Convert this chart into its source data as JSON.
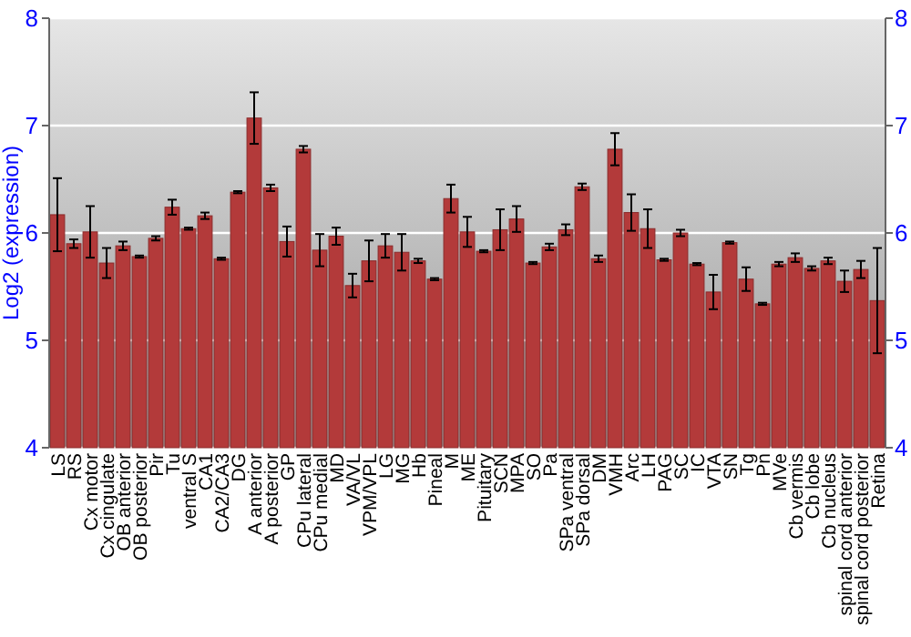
{
  "chart_data": {
    "type": "bar",
    "ylabel": "Log2 (expression)",
    "categories": [
      "LS",
      "RS",
      "Cx motor",
      "Cx cingulate",
      "OB anterior",
      "OB posterior",
      "Pir",
      "Tu",
      "ventral S",
      "CA1",
      "CA2/CA3",
      "DG",
      "A anterior",
      "A posterior",
      "GP",
      "CPu lateral",
      "CPu medial",
      "MD",
      "VA/VL",
      "VPM/VPL",
      "LG",
      "MG",
      "Hb",
      "Pineal",
      "M",
      "ME",
      "Pituitary",
      "SCN",
      "MPA",
      "SO",
      "Pa",
      "SPa ventral",
      "SPa dorsal",
      "DM",
      "VMH",
      "Arc",
      "LH",
      "PAG",
      "SC",
      "IC",
      "VTA",
      "SN",
      "Tg",
      "Pn",
      "MVe",
      "Cb vermis",
      "Cb lobe",
      "Cb nucleus",
      "spinal cord anterior",
      "spinal cord posterior",
      "Retina"
    ],
    "values": [
      6.17,
      5.9,
      6.01,
      5.72,
      5.88,
      5.78,
      5.95,
      6.24,
      6.04,
      6.16,
      5.76,
      6.38,
      7.07,
      6.42,
      5.92,
      6.78,
      5.84,
      5.97,
      5.51,
      5.74,
      5.88,
      5.82,
      5.74,
      5.57,
      6.32,
      6.01,
      5.83,
      6.03,
      6.13,
      5.72,
      5.87,
      6.03,
      6.43,
      5.76,
      6.78,
      6.19,
      6.04,
      5.75,
      6.0,
      5.71,
      5.45,
      5.91,
      5.57,
      5.34,
      5.71,
      5.77,
      5.67,
      5.74,
      5.55,
      5.66,
      5.37
    ],
    "errors": [
      0.34,
      0.04,
      0.24,
      0.14,
      0.04,
      0.01,
      0.02,
      0.07,
      0.01,
      0.03,
      0.01,
      0.01,
      0.24,
      0.03,
      0.14,
      0.03,
      0.15,
      0.08,
      0.11,
      0.19,
      0.11,
      0.17,
      0.02,
      0.01,
      0.13,
      0.14,
      0.01,
      0.19,
      0.12,
      0.01,
      0.03,
      0.05,
      0.03,
      0.03,
      0.15,
      0.17,
      0.18,
      0.01,
      0.03,
      0.01,
      0.16,
      0.01,
      0.11,
      0.01,
      0.02,
      0.04,
      0.02,
      0.03,
      0.1,
      0.08,
      0.49
    ],
    "color": "#b33a3a",
    "ylim": [
      4,
      8
    ],
    "yticks": [
      4,
      5,
      6,
      7,
      8
    ],
    "y2lim": [
      4,
      8
    ],
    "y2ticks": [
      4,
      5,
      6,
      7,
      8
    ],
    "grid": "y"
  }
}
